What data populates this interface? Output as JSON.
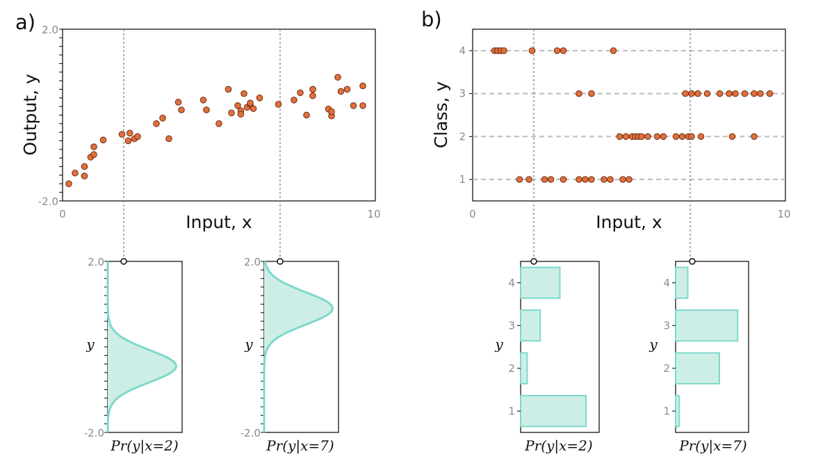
{
  "panels": {
    "a": {
      "label": "a)"
    },
    "b": {
      "label": "b)"
    }
  },
  "colors": {
    "point_fill": "#e0703e",
    "point_stroke": "#6e2c10",
    "dist_fill": "#cdeee6",
    "dist_stroke": "#7dd8cc",
    "guide": "#777777",
    "class_grid": "#bbbbbb"
  },
  "chart_data": [
    {
      "id": "a-scatter",
      "type": "scatter",
      "title": "",
      "xlabel": "Input, x",
      "ylabel": "Output, y",
      "xlim": [
        0,
        10
      ],
      "ylim": [
        -2,
        2
      ],
      "x_tick_labels": [
        "0",
        "10"
      ],
      "y_tick_labels": [
        "2.0",
        "-2.0"
      ],
      "guides_x": [
        2,
        7
      ],
      "points": [
        [
          0.2,
          -1.6
        ],
        [
          0.4,
          -1.35
        ],
        [
          0.7,
          -1.42
        ],
        [
          0.7,
          -1.2
        ],
        [
          0.9,
          -0.98
        ],
        [
          1.0,
          -0.92
        ],
        [
          1.0,
          -0.74
        ],
        [
          1.3,
          -0.58
        ],
        [
          1.9,
          -0.45
        ],
        [
          2.1,
          -0.6
        ],
        [
          2.15,
          -0.42
        ],
        [
          2.3,
          -0.55
        ],
        [
          2.4,
          -0.5
        ],
        [
          3.0,
          -0.2
        ],
        [
          3.2,
          -0.07
        ],
        [
          3.4,
          -0.55
        ],
        [
          3.7,
          0.3
        ],
        [
          3.8,
          0.12
        ],
        [
          4.5,
          0.35
        ],
        [
          4.6,
          0.12
        ],
        [
          5.0,
          -0.2
        ],
        [
          5.3,
          0.6
        ],
        [
          5.4,
          0.05
        ],
        [
          5.6,
          0.22
        ],
        [
          5.7,
          0.1
        ],
        [
          5.7,
          0.02
        ],
        [
          5.8,
          0.5
        ],
        [
          5.9,
          0.18
        ],
        [
          6.0,
          0.25
        ],
        [
          6.0,
          0.28
        ],
        [
          6.1,
          0.15
        ],
        [
          6.3,
          0.4
        ],
        [
          6.9,
          0.25
        ],
        [
          7.4,
          0.35
        ],
        [
          7.6,
          0.52
        ],
        [
          7.8,
          0.0
        ],
        [
          8.0,
          0.45
        ],
        [
          8.0,
          0.6
        ],
        [
          8.5,
          0.14
        ],
        [
          8.6,
          -0.02
        ],
        [
          8.6,
          0.08
        ],
        [
          8.8,
          0.88
        ],
        [
          8.9,
          0.55
        ],
        [
          9.1,
          0.6
        ],
        [
          9.3,
          0.22
        ],
        [
          9.6,
          0.22
        ],
        [
          9.6,
          0.68
        ]
      ]
    },
    {
      "id": "b-class",
      "type": "scatter",
      "title": "",
      "xlabel": "Input, x",
      "ylabel": "Class, y",
      "xlim": [
        0,
        10
      ],
      "ylim": [
        0.5,
        4.5
      ],
      "x_tick_labels": [
        "0",
        "10"
      ],
      "y_tick_labels": [
        "1",
        "2",
        "3",
        "4"
      ],
      "grid": true,
      "guides_x": [
        2,
        7
      ],
      "points": [
        [
          0.7,
          4
        ],
        [
          0.8,
          4
        ],
        [
          0.9,
          4
        ],
        [
          1.0,
          4
        ],
        [
          1.9,
          4
        ],
        [
          2.7,
          4
        ],
        [
          2.9,
          4
        ],
        [
          4.5,
          4
        ],
        [
          3.4,
          3
        ],
        [
          3.8,
          3
        ],
        [
          6.8,
          3
        ],
        [
          7.0,
          3
        ],
        [
          7.2,
          3
        ],
        [
          7.5,
          3
        ],
        [
          7.9,
          3
        ],
        [
          8.2,
          3
        ],
        [
          8.4,
          3
        ],
        [
          8.7,
          3
        ],
        [
          9.0,
          3
        ],
        [
          9.2,
          3
        ],
        [
          9.5,
          3
        ],
        [
          4.7,
          2
        ],
        [
          4.9,
          2
        ],
        [
          5.1,
          2
        ],
        [
          5.2,
          2
        ],
        [
          5.3,
          2
        ],
        [
          5.4,
          2
        ],
        [
          5.6,
          2
        ],
        [
          5.9,
          2
        ],
        [
          6.1,
          2
        ],
        [
          6.5,
          2
        ],
        [
          6.7,
          2
        ],
        [
          6.9,
          2
        ],
        [
          7.0,
          2
        ],
        [
          7.3,
          2
        ],
        [
          8.3,
          2
        ],
        [
          9.0,
          2
        ],
        [
          1.5,
          1
        ],
        [
          1.8,
          1
        ],
        [
          2.3,
          1
        ],
        [
          2.5,
          1
        ],
        [
          2.9,
          1
        ],
        [
          3.4,
          1
        ],
        [
          3.6,
          1
        ],
        [
          3.8,
          1
        ],
        [
          4.2,
          1
        ],
        [
          4.4,
          1
        ],
        [
          4.8,
          1
        ],
        [
          5.0,
          1
        ]
      ]
    },
    {
      "id": "a-pdf-x2",
      "type": "line",
      "title": "Pr(y|x=2)",
      "ylabel": "y",
      "ylim": [
        -2,
        2
      ],
      "y_tick_labels": [
        "2.0",
        "-2.0"
      ],
      "distribution": {
        "kind": "normal",
        "mean": -0.45,
        "std": 0.38,
        "peak_fraction": 0.92
      }
    },
    {
      "id": "a-pdf-x7",
      "type": "line",
      "title": "Pr(y|x=7)",
      "ylabel": "y",
      "ylim": [
        -2,
        2
      ],
      "y_tick_labels": [
        "2.0",
        "-2.0"
      ],
      "distribution": {
        "kind": "normal",
        "mean": 0.9,
        "std": 0.38,
        "peak_fraction": 0.92
      }
    },
    {
      "id": "b-prob-x2",
      "type": "bar",
      "orientation": "horizontal",
      "title": "Pr(y|x=2)",
      "ylabel": "y",
      "categories": [
        "1",
        "2",
        "3",
        "4"
      ],
      "values": [
        0.5,
        0.05,
        0.15,
        0.3
      ]
    },
    {
      "id": "b-prob-x7",
      "type": "bar",
      "orientation": "horizontal",
      "title": "Pr(y|x=7)",
      "ylabel": "y",
      "categories": [
        "1",
        "2",
        "3",
        "4"
      ],
      "values": [
        0.03,
        0.36,
        0.51,
        0.1
      ]
    }
  ]
}
